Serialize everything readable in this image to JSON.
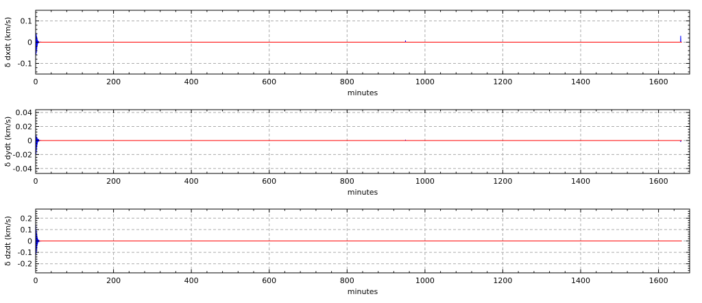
{
  "chart_data": [
    {
      "type": "line",
      "xlabel": "minutes",
      "ylabel": "δ dxdt (km/s)",
      "xlim": [
        0,
        1680
      ],
      "ylim": [
        -0.15,
        0.15
      ],
      "xticks": [
        0,
        200,
        400,
        600,
        800,
        1000,
        1200,
        1400,
        1600
      ],
      "xtick_labels": [
        "0",
        "200",
        "400",
        "600",
        "800",
        "1000",
        "1200",
        "1400",
        "1600"
      ],
      "yticks": [
        0.1,
        0,
        -0.1
      ],
      "ytick_labels": [
        "0.1",
        "0",
        "-0.1"
      ],
      "grid": true,
      "series": [
        {
          "color": "#0000ff",
          "x": [
            0,
            0.5,
            1,
            1.5,
            2,
            2.5,
            3,
            3.5,
            4,
            4.5,
            5,
            6,
            7,
            8,
            9,
            10,
            12,
            15,
            20,
            30,
            949.5,
            950,
            950.5,
            1656.5,
            1657,
            1657.5,
            1660
          ],
          "y": [
            0,
            0.045,
            -0.06,
            0.04,
            -0.05,
            0.03,
            -0.035,
            0.02,
            -0.02,
            0.012,
            -0.01,
            0.006,
            -0.004,
            0.002,
            -0.001,
            0,
            0.001,
            0,
            0,
            0,
            0,
            0.008,
            0,
            0,
            0.03,
            0,
            0
          ]
        },
        {
          "color": "#ff0000",
          "x": [
            0,
            1660
          ],
          "y": [
            0,
            0
          ]
        }
      ]
    },
    {
      "type": "line",
      "xlabel": "minutes",
      "ylabel": "δ dydt (km/s)",
      "xlim": [
        0,
        1680
      ],
      "ylim": [
        -0.047,
        0.044
      ],
      "xticks": [
        0,
        200,
        400,
        600,
        800,
        1000,
        1200,
        1400,
        1600
      ],
      "xtick_labels": [
        "0",
        "200",
        "400",
        "600",
        "800",
        "1000",
        "1200",
        "1400",
        "1600"
      ],
      "yticks": [
        0.04,
        0.02,
        0,
        -0.02,
        -0.04
      ],
      "ytick_labels": [
        "0.04",
        "0.02",
        "0",
        "-0.02",
        "-0.04"
      ],
      "grid": true,
      "series": [
        {
          "color": "#0000ff",
          "x": [
            0,
            0.5,
            1,
            1.5,
            2,
            2.5,
            3,
            3.5,
            4,
            4.5,
            5,
            6,
            7,
            8,
            9,
            10,
            12,
            15,
            20,
            30,
            949.5,
            950,
            950.5,
            1656.5,
            1657,
            1657.5,
            1660
          ],
          "y": [
            0,
            0.008,
            -0.02,
            0.007,
            -0.015,
            0.005,
            -0.01,
            0.004,
            -0.006,
            0.003,
            -0.003,
            0.002,
            -0.0015,
            0.001,
            -0.0005,
            0,
            0.0003,
            0,
            0,
            0,
            0,
            0.001,
            0,
            0,
            -0.002,
            0,
            0
          ]
        },
        {
          "color": "#ff0000",
          "x": [
            0,
            1660
          ],
          "y": [
            0,
            0
          ]
        }
      ]
    },
    {
      "type": "line",
      "xlabel": "minutes",
      "ylabel": "δ dzdt (km/s)",
      "xlim": [
        0,
        1680
      ],
      "ylim": [
        -0.28,
        0.28
      ],
      "xticks": [
        0,
        200,
        400,
        600,
        800,
        1000,
        1200,
        1400,
        1600
      ],
      "xtick_labels": [
        "0",
        "200",
        "400",
        "600",
        "800",
        "1000",
        "1200",
        "1400",
        "1600"
      ],
      "yticks": [
        0.2,
        0.1,
        0,
        -0.1,
        -0.2
      ],
      "ytick_labels": [
        "0.2",
        "0.1",
        "0",
        "-0.1",
        "-0.2"
      ],
      "grid": true,
      "series": [
        {
          "color": "#0000ff",
          "x": [
            0,
            0.5,
            1,
            1.5,
            2,
            2.5,
            3,
            3.5,
            4,
            4.5,
            5,
            6,
            7,
            8,
            9,
            10,
            12,
            15,
            20,
            30,
            1660
          ],
          "y": [
            0,
            0.14,
            -0.12,
            0.1,
            -0.1,
            0.07,
            -0.07,
            0.05,
            -0.04,
            0.03,
            -0.025,
            0.015,
            -0.01,
            0.007,
            -0.004,
            0.002,
            -0.001,
            0,
            0,
            0,
            0
          ]
        },
        {
          "color": "#ff0000",
          "x": [
            0,
            1660
          ],
          "y": [
            0,
            0
          ]
        }
      ]
    }
  ]
}
